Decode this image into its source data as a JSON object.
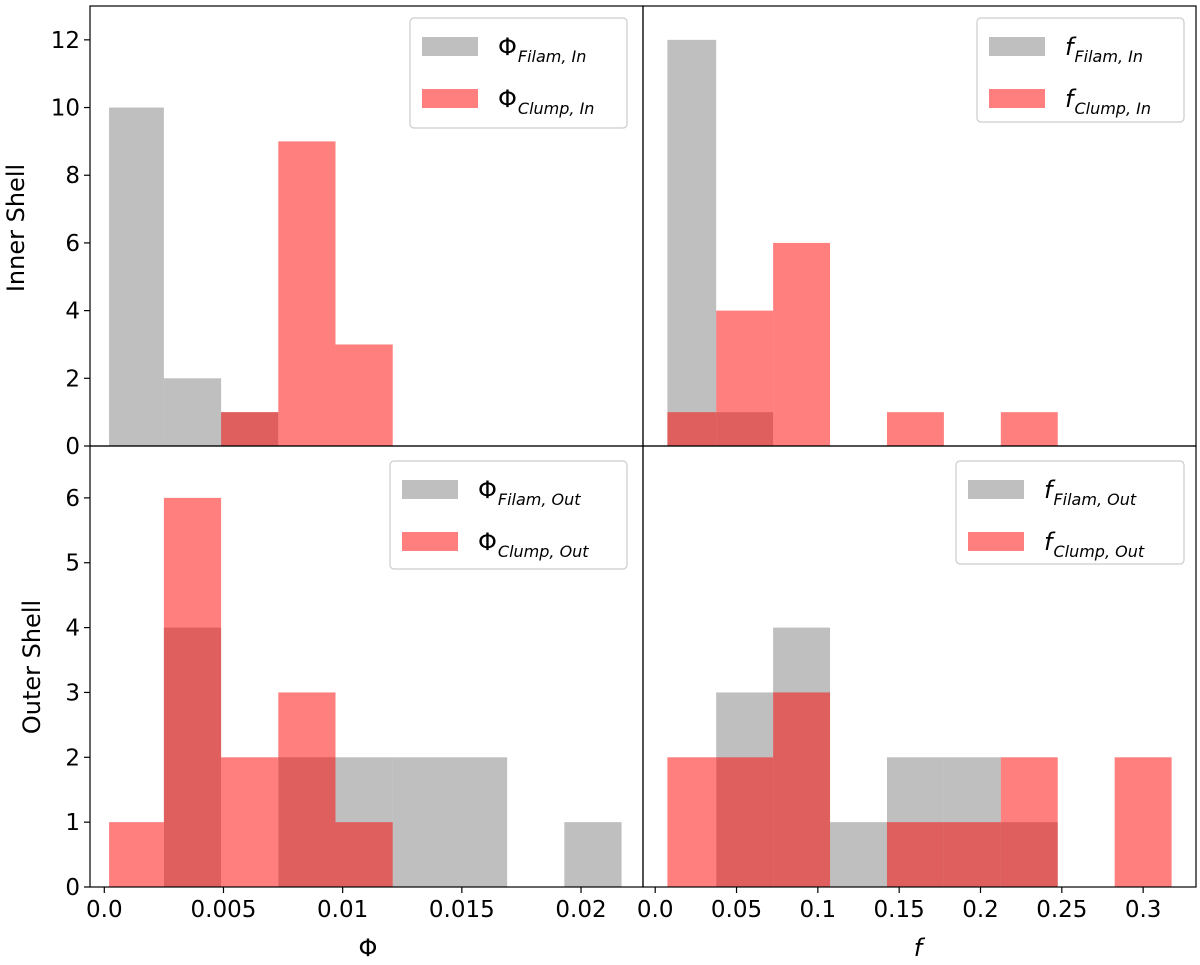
{
  "chart_data": {
    "type": "bar",
    "colors": {
      "filament": "#808080",
      "clump": "#ff0000",
      "axis": "#000000"
    },
    "bar_alpha": 0.5,
    "row_labels": [
      "Inner Shell",
      "Outer Shell"
    ],
    "xlabel_left": "Φ",
    "xlabel_right": "f",
    "xlim_left": [
      -0.0006,
      0.0226
    ],
    "xlim_right": [
      -0.0075,
      0.3325
    ],
    "ylim_top": [
      0,
      13
    ],
    "ylim_bottom": [
      0,
      6.8
    ],
    "xticks_left": [
      {
        "value": 0.0,
        "label": "0.0"
      },
      {
        "value": 0.005,
        "label": "0.005"
      },
      {
        "value": 0.01,
        "label": "0.01"
      },
      {
        "value": 0.015,
        "label": "0.015"
      },
      {
        "value": 0.02,
        "label": "0.02"
      }
    ],
    "xticks_right": [
      {
        "value": 0.0,
        "label": "0.0"
      },
      {
        "value": 0.05,
        "label": "0.05"
      },
      {
        "value": 0.1,
        "label": "0.1"
      },
      {
        "value": 0.15,
        "label": "0.15"
      },
      {
        "value": 0.2,
        "label": "0.2"
      },
      {
        "value": 0.25,
        "label": "0.25"
      },
      {
        "value": 0.3,
        "label": "0.3"
      }
    ],
    "yticks_top": [
      0,
      2,
      4,
      6,
      8,
      10,
      12
    ],
    "yticks_bottom": [
      0,
      1,
      2,
      3,
      4,
      5,
      6
    ],
    "panels": [
      {
        "id": "inner-phi",
        "legend": [
          {
            "symbol": "Φ",
            "sub": "Filam, In",
            "series": "filament"
          },
          {
            "symbol": "Φ",
            "sub": "Clump, In",
            "series": "clump"
          }
        ],
        "series": [
          {
            "name": "Filam, In",
            "kind": "filament",
            "bin_edges": [
              0.0002,
              0.0025,
              0.0049,
              0.0073,
              0.0097,
              0.0121,
              0.0145,
              0.0169,
              0.0193,
              0.0217
            ],
            "counts": [
              10,
              2,
              1,
              0,
              0,
              0,
              0,
              0,
              0
            ]
          },
          {
            "name": "Clump, In",
            "kind": "clump",
            "bin_edges": [
              0.0002,
              0.0025,
              0.0049,
              0.0073,
              0.0097,
              0.0121,
              0.0145,
              0.0169,
              0.0193,
              0.0217
            ],
            "counts": [
              0,
              0,
              1,
              9,
              3,
              0,
              0,
              0,
              0
            ]
          }
        ]
      },
      {
        "id": "inner-f",
        "legend": [
          {
            "symbol": "f",
            "sub": "Filam, In",
            "series": "filament"
          },
          {
            "symbol": "f",
            "sub": "Clump, In",
            "series": "clump"
          }
        ],
        "series": [
          {
            "name": "Filam, In",
            "kind": "filament",
            "bin_edges": [
              0.0075,
              0.0375,
              0.0725
            ],
            "counts": [
              12,
              1
            ]
          },
          {
            "name": "Clump, In",
            "kind": "clump",
            "bin_edges": [
              0.0075,
              0.0375,
              0.0725,
              0.1075,
              0.1425,
              0.1775,
              0.2125,
              0.2475
            ],
            "counts": [
              1,
              4,
              6,
              0,
              1,
              0,
              1
            ]
          }
        ]
      },
      {
        "id": "outer-phi",
        "legend": [
          {
            "symbol": "Φ",
            "sub": "Filam, Out",
            "series": "filament"
          },
          {
            "symbol": "Φ",
            "sub": "Clump, Out",
            "series": "clump"
          }
        ],
        "series": [
          {
            "name": "Filam, Out",
            "kind": "filament",
            "bin_edges": [
              0.0002,
              0.0025,
              0.0049,
              0.0073,
              0.0097,
              0.0121,
              0.0145,
              0.0169,
              0.0193,
              0.0217
            ],
            "counts": [
              0,
              4,
              0,
              2,
              2,
              2,
              2,
              0,
              1
            ]
          },
          {
            "name": "Clump, Out",
            "kind": "clump",
            "bin_edges": [
              0.0002,
              0.0025,
              0.0049,
              0.0073,
              0.0097,
              0.0121,
              0.0145,
              0.0169,
              0.0193,
              0.0217
            ],
            "counts": [
              1,
              6,
              2,
              3,
              1,
              0,
              0,
              0,
              0
            ]
          }
        ]
      },
      {
        "id": "outer-f",
        "legend": [
          {
            "symbol": "f",
            "sub": "Filam, Out",
            "series": "filament"
          },
          {
            "symbol": "f",
            "sub": "Clump, Out",
            "series": "clump"
          }
        ],
        "series": [
          {
            "name": "Filam, Out",
            "kind": "filament",
            "bin_edges": [
              0.0375,
              0.0725,
              0.1075,
              0.1425,
              0.1775,
              0.2125,
              0.2475
            ],
            "counts": [
              3,
              4,
              1,
              2,
              2,
              1
            ]
          },
          {
            "name": "Clump, Out",
            "kind": "clump",
            "bin_edges": [
              0.0075,
              0.0375,
              0.0725,
              0.1075,
              0.1425,
              0.1775,
              0.2125,
              0.2475,
              0.2825,
              0.3175
            ],
            "counts": [
              2,
              2,
              3,
              0,
              1,
              1,
              2,
              0,
              2
            ]
          }
        ]
      }
    ]
  }
}
